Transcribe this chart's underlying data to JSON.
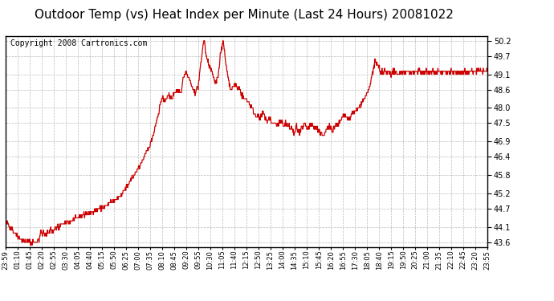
{
  "title": "Outdoor Temp (vs) Heat Index per Minute (Last 24 Hours) 20081022",
  "copyright_text": "Copyright 2008 Cartronics.com",
  "line_color": "#cc0000",
  "background_color": "#ffffff",
  "grid_color": "#bbbbbb",
  "yticks": [
    43.6,
    44.1,
    44.7,
    45.2,
    45.8,
    46.4,
    46.9,
    47.5,
    48.0,
    48.6,
    49.1,
    49.7,
    50.2
  ],
  "ylim": [
    43.45,
    50.35
  ],
  "xtick_labels": [
    "23:59",
    "01:10",
    "01:45",
    "02:20",
    "02:55",
    "03:30",
    "04:05",
    "04:40",
    "05:15",
    "05:50",
    "06:25",
    "07:00",
    "07:35",
    "08:10",
    "08:45",
    "09:20",
    "09:55",
    "10:30",
    "11:05",
    "11:40",
    "12:15",
    "12:50",
    "13:25",
    "14:00",
    "14:35",
    "15:10",
    "15:45",
    "16:20",
    "16:55",
    "17:30",
    "18:05",
    "18:40",
    "19:15",
    "19:50",
    "20:25",
    "21:00",
    "21:35",
    "22:10",
    "22:45",
    "23:20",
    "23:55"
  ],
  "title_fontsize": 11,
  "copyright_fontsize": 7
}
